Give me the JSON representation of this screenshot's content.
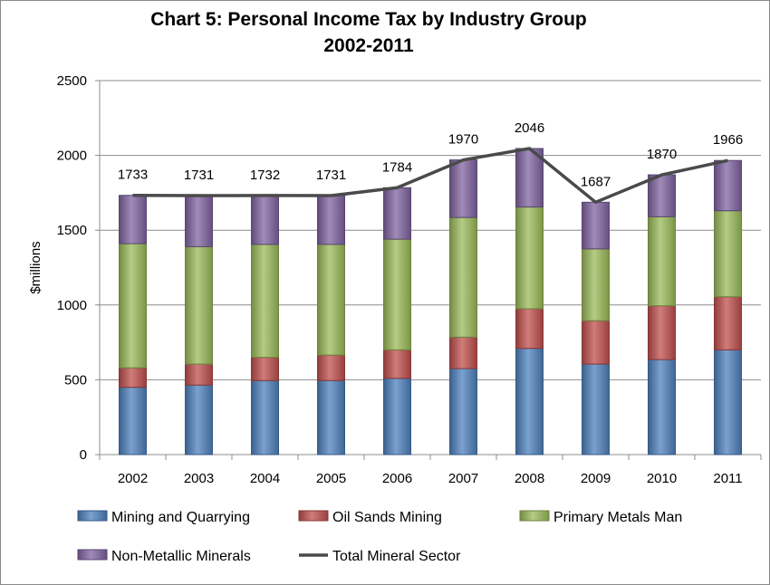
{
  "chart_data": {
    "type": "bar",
    "stacked": true,
    "title": "Chart 5: Personal Income Tax by Industry Group",
    "subtitle": "2002-2011",
    "xlabel": "",
    "ylabel": "$millions",
    "ylim": [
      0,
      2500
    ],
    "yticks": [
      "0",
      "500",
      "1000",
      "1500",
      "2000",
      "2500"
    ],
    "grid": true,
    "legend_position": "bottom",
    "categories": [
      "2002",
      "2003",
      "2004",
      "2005",
      "2006",
      "2007",
      "2008",
      "2009",
      "2010",
      "2011"
    ],
    "series": [
      {
        "name": "Mining and Quarrying",
        "kind": "bar",
        "color": "#4f81bd",
        "values": [
          450,
          465,
          495,
          495,
          510,
          575,
          710,
          605,
          635,
          700
        ]
      },
      {
        "name": "Oil Sands Mining",
        "kind": "bar",
        "color": "#c0504d",
        "values": [
          130,
          140,
          155,
          170,
          190,
          210,
          265,
          290,
          360,
          355
        ]
      },
      {
        "name": "Primary Metals Man",
        "kind": "bar",
        "color": "#9bbb59",
        "values": [
          830,
          785,
          755,
          740,
          740,
          800,
          680,
          480,
          595,
          575
        ]
      },
      {
        "name": "Non-Metallic Minerals",
        "kind": "bar",
        "color": "#8064a2",
        "values": [
          323,
          341,
          327,
          326,
          344,
          385,
          391,
          312,
          280,
          336
        ]
      },
      {
        "name": "Total Mineral Sector",
        "kind": "line",
        "color": "#4a4a4a",
        "values": [
          1733,
          1731,
          1732,
          1731,
          1784,
          1970,
          2046,
          1687,
          1870,
          1966
        ]
      }
    ],
    "data_labels": [
      "1733",
      "1731",
      "1732",
      "1731",
      "1784",
      "1970",
      "2046",
      "1687",
      "1870",
      "1966"
    ]
  }
}
